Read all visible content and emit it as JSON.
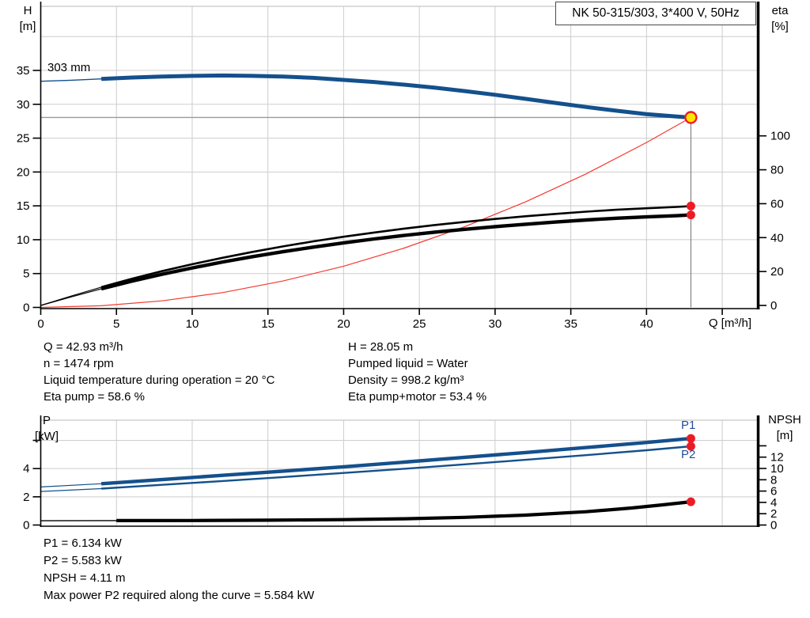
{
  "title_box": "NK 50-315/303, 3*400 V, 50Hz",
  "info_top": {
    "left": [
      "Q = 42.93 m³/h",
      "n = 1474 rpm",
      "Liquid temperature during operation = 20 °C",
      "Eta pump = 58.6 %"
    ],
    "right": [
      "H = 28.05 m",
      "Pumped liquid = Water",
      "Density = 998.2 kg/m³",
      "Eta pump+motor = 53.4 %"
    ]
  },
  "info_bottom": [
    "P1 = 6.134 kW",
    "P2 = 5.583 kW",
    "NPSH = 4.11 m",
    "Max power P2 required along the curve = 5.584 kW"
  ],
  "colors": {
    "curve_blue": "#14508c",
    "curve_black": "#000000",
    "system_red": "#f4392e",
    "marker_red": "#ed1c24",
    "duty_yellow": "#ffe600",
    "grid": "#cdcdcd",
    "guide_h": "#9a9a9a",
    "guide_v": "#7a7a7a",
    "label_blue": "#1f4e9a"
  },
  "chart_data": [
    {
      "id": "qh",
      "type": "line",
      "title": "NK 50-315/303, 3*400 V, 50Hz",
      "xlabel": "Q [m³/h]",
      "ylabel_left": [
        "H",
        "[m]"
      ],
      "ylabel_right": [
        "eta",
        "[%]"
      ],
      "x_axis": {
        "min": 0,
        "max": 47.3,
        "labeled_ticks": [
          0,
          5,
          10,
          15,
          20,
          25,
          30,
          35,
          40
        ],
        "unlabeled_ticks": [
          45
        ],
        "grid_ticks": [
          5,
          10,
          15,
          20,
          25,
          30,
          35,
          40,
          45
        ]
      },
      "y_left_axis": {
        "min": 0,
        "max": 44.4,
        "labeled_ticks": [
          0,
          5,
          10,
          15,
          20,
          25,
          30,
          35
        ],
        "grid_values": [
          5,
          10,
          15,
          20,
          25,
          30,
          35,
          40
        ]
      },
      "y_right_axis": {
        "min": 0,
        "max": 110,
        "labeled_ticks": [
          0,
          20,
          40,
          60,
          80,
          100
        ]
      },
      "duty_point": {
        "q": 42.93,
        "h": 28.05
      },
      "series": [
        {
          "name": "head-curve",
          "label": "303 mm",
          "axis": "left",
          "color": "#14508c",
          "width_thin": 1.4,
          "width": 5,
          "thick_from": 4,
          "points": [
            [
              0,
              33.4
            ],
            [
              2,
              33.55
            ],
            [
              4,
              33.75
            ],
            [
              6,
              33.95
            ],
            [
              8,
              34.1
            ],
            [
              10,
              34.2
            ],
            [
              12,
              34.25
            ],
            [
              14,
              34.2
            ],
            [
              16,
              34.1
            ],
            [
              18,
              33.9
            ],
            [
              20,
              33.6
            ],
            [
              22,
              33.3
            ],
            [
              24,
              32.9
            ],
            [
              26,
              32.45
            ],
            [
              28,
              31.95
            ],
            [
              30,
              31.4
            ],
            [
              32,
              30.8
            ],
            [
              34,
              30.2
            ],
            [
              36,
              29.6
            ],
            [
              38,
              29.05
            ],
            [
              40,
              28.55
            ],
            [
              42,
              28.2
            ],
            [
              42.93,
              28.05
            ]
          ]
        },
        {
          "name": "system-curve",
          "axis": "left",
          "color": "#f4392e",
          "width_thin": 1.2,
          "points": [
            [
              0,
              0
            ],
            [
              4,
              0.24
            ],
            [
              8,
              0.97
            ],
            [
              12,
              2.19
            ],
            [
              16,
              3.9
            ],
            [
              20,
              6.09
            ],
            [
              24,
              8.77
            ],
            [
              28,
              11.93
            ],
            [
              32,
              15.58
            ],
            [
              36,
              19.72
            ],
            [
              40,
              24.35
            ],
            [
              42.93,
              28.05
            ]
          ]
        },
        {
          "name": "eta-pump-curve",
          "axis": "right",
          "color": "#000000",
          "width_thin": 1.2,
          "width": 2.6,
          "thick_from": 4,
          "points": [
            [
              0,
              0
            ],
            [
              2,
              5.5
            ],
            [
              4,
              10.8
            ],
            [
              6,
              15.7
            ],
            [
              8,
              20.2
            ],
            [
              10,
              24.3
            ],
            [
              12,
              28.1
            ],
            [
              14,
              31.6
            ],
            [
              16,
              34.8
            ],
            [
              18,
              37.8
            ],
            [
              20,
              40.5
            ],
            [
              22,
              43
            ],
            [
              24,
              45.3
            ],
            [
              26,
              47.4
            ],
            [
              28,
              49.3
            ],
            [
              30,
              51
            ],
            [
              32,
              52.6
            ],
            [
              34,
              54
            ],
            [
              36,
              55.3
            ],
            [
              38,
              56.4
            ],
            [
              40,
              57.3
            ],
            [
              42,
              58.1
            ],
            [
              42.93,
              58.6
            ]
          ]
        },
        {
          "name": "eta-pump-motor-curve",
          "axis": "right",
          "color": "#000000",
          "width_thin": 1.2,
          "width": 4.4,
          "thick_from": 4,
          "points": [
            [
              0,
              0
            ],
            [
              2,
              5
            ],
            [
              4,
              9.8
            ],
            [
              6,
              14.3
            ],
            [
              8,
              18.4
            ],
            [
              10,
              22.1
            ],
            [
              12,
              25.6
            ],
            [
              14,
              28.8
            ],
            [
              16,
              31.7
            ],
            [
              18,
              34.4
            ],
            [
              20,
              36.9
            ],
            [
              22,
              39.2
            ],
            [
              24,
              41.3
            ],
            [
              26,
              43.2
            ],
            [
              28,
              44.9
            ],
            [
              30,
              46.5
            ],
            [
              32,
              47.9
            ],
            [
              34,
              49.2
            ],
            [
              36,
              50.4
            ],
            [
              38,
              51.4
            ],
            [
              40,
              52.2
            ],
            [
              42,
              52.9
            ],
            [
              42.93,
              53.4
            ]
          ]
        }
      ],
      "guides": [
        {
          "name": "duty-head-guide-line",
          "type": "h",
          "axis": "left",
          "value": 28.05,
          "from_x": 0,
          "to_x": 42.93,
          "color": "#9a9a9a",
          "width": 1.4
        },
        {
          "name": "duty-flow-guide-line",
          "type": "v",
          "axis": "left",
          "x": 42.93,
          "from": 0,
          "to": 28.05,
          "color": "#7a7a7a",
          "width": 1.1
        }
      ],
      "markers": [
        {
          "name": "duty-point-marker",
          "x": 42.93,
          "value": 28.05,
          "axis": "left",
          "r": 7,
          "fill": "#ffe600",
          "stroke": "#ed1c24",
          "stroke_width": 2.4
        },
        {
          "name": "eta-pump-endpoint",
          "x": 42.93,
          "value": 58.6,
          "axis": "right",
          "r": 5.5,
          "fill": "#ed1c24"
        },
        {
          "name": "eta-pump-motor-endpoint",
          "x": 42.93,
          "value": 53.4,
          "axis": "right",
          "r": 5.5,
          "fill": "#ed1c24"
        }
      ]
    },
    {
      "id": "pnpsh",
      "type": "line",
      "title": "",
      "xlabel": "",
      "ylabel_left": [
        "P",
        "[kW]"
      ],
      "ylabel_right": [
        "NPSH",
        "[m]"
      ],
      "x_axis": {
        "min": 0,
        "max": 47.3,
        "grid_ticks": [
          5,
          10,
          15,
          20,
          25,
          30,
          35,
          40,
          45
        ]
      },
      "y_left_axis": {
        "min": 0,
        "max": 7.4,
        "labeled_ticks": [
          0,
          2,
          4
        ],
        "unlabeled_ticks": [
          6
        ],
        "grid_values": [
          2,
          4,
          6
        ]
      },
      "y_right_axis": {
        "min": 0,
        "max": 18.5,
        "labeled_ticks": [
          0,
          2,
          4,
          6,
          8,
          10,
          12
        ],
        "unlabeled_ticks": [
          14
        ]
      },
      "series": [
        {
          "name": "p1-curve",
          "label": "P1",
          "axis": "left",
          "color": "#14508c",
          "width_thin": 1.2,
          "width": 4.4,
          "thick_from": 4,
          "points": [
            [
              0,
              2.7
            ],
            [
              4,
              2.93
            ],
            [
              8,
              3.22
            ],
            [
              12,
              3.52
            ],
            [
              16,
              3.82
            ],
            [
              20,
              4.13
            ],
            [
              24,
              4.46
            ],
            [
              28,
              4.8
            ],
            [
              32,
              5.14
            ],
            [
              36,
              5.49
            ],
            [
              40,
              5.85
            ],
            [
              42.93,
              6.134
            ]
          ]
        },
        {
          "name": "p2-curve",
          "label": "P2",
          "axis": "left",
          "color": "#14508c",
          "width_thin": 1.2,
          "width": 2.4,
          "thick_from": 4,
          "points": [
            [
              0,
              2.38
            ],
            [
              4,
              2.58
            ],
            [
              8,
              2.85
            ],
            [
              12,
              3.12
            ],
            [
              16,
              3.4
            ],
            [
              20,
              3.69
            ],
            [
              24,
              3.99
            ],
            [
              28,
              4.3
            ],
            [
              32,
              4.62
            ],
            [
              36,
              4.95
            ],
            [
              40,
              5.3
            ],
            [
              42.93,
              5.583
            ]
          ]
        },
        {
          "name": "npsh-curve",
          "axis": "right",
          "color": "#000000",
          "width_thin": 1.4,
          "width": 4.2,
          "thick_from": 4,
          "points": [
            [
              0,
              0.75
            ],
            [
              5,
              0.78
            ],
            [
              10,
              0.8
            ],
            [
              15,
              0.85
            ],
            [
              20,
              0.95
            ],
            [
              24,
              1.1
            ],
            [
              28,
              1.35
            ],
            [
              32,
              1.75
            ],
            [
              36,
              2.35
            ],
            [
              39,
              3
            ],
            [
              41,
              3.55
            ],
            [
              42.93,
              4.11
            ]
          ]
        }
      ],
      "markers": [
        {
          "name": "p1-endpoint",
          "x": 42.93,
          "value": 6.134,
          "axis": "left",
          "r": 5.5,
          "fill": "#ed1c24"
        },
        {
          "name": "p2-endpoint",
          "x": 42.93,
          "value": 5.583,
          "axis": "left",
          "r": 5.5,
          "fill": "#ed1c24"
        },
        {
          "name": "npsh-endpoint",
          "x": 42.93,
          "value": 4.11,
          "axis": "right",
          "r": 5.5,
          "fill": "#ed1c24"
        }
      ]
    }
  ]
}
